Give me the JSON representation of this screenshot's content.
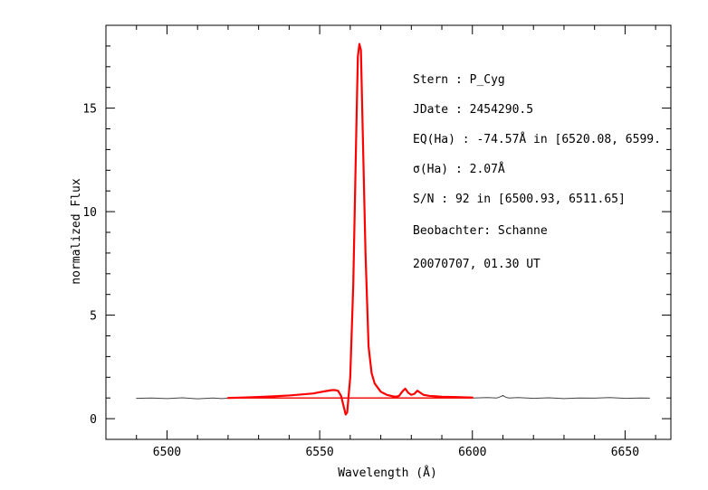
{
  "chart_data": {
    "type": "line",
    "xlabel": "Wavelength (Å)",
    "ylabel": "normalized Flux",
    "xlim": [
      6480,
      6665
    ],
    "ylim": [
      -1,
      19
    ],
    "x_ticks": [
      6500,
      6550,
      6600,
      6650
    ],
    "y_ticks": [
      0,
      5,
      10,
      15
    ],
    "grid": false,
    "colors": {
      "raw": "#444444",
      "fit": "#ff0000",
      "frame": "#000000"
    },
    "series": [
      {
        "style": "thin-gray",
        "x": [
          6490,
          6495,
          6500,
          6505,
          6510,
          6515,
          6518,
          6521,
          6600,
          6605,
          6608,
          6609,
          6610,
          6611,
          6612,
          6615,
          6620,
          6625,
          6630,
          6635,
          6640,
          6645,
          6650,
          6655,
          6658
        ],
        "y": [
          0.98,
          1.0,
          0.97,
          1.01,
          0.96,
          1.0,
          0.97,
          1.0,
          1.0,
          1.02,
          1.0,
          1.05,
          1.12,
          1.03,
          1.0,
          1.02,
          0.98,
          1.01,
          0.97,
          1.0,
          0.99,
          1.02,
          0.98,
          1.0,
          0.99
        ]
      },
      {
        "style": "thick-red",
        "x": [
          6520,
          6525,
          6530,
          6535,
          6540,
          6545,
          6548,
          6550,
          6552,
          6554,
          6555,
          6556,
          6557,
          6558,
          6558.5,
          6559,
          6560,
          6561,
          6562,
          6562.5,
          6563,
          6563.5,
          6564,
          6565,
          6566,
          6567,
          6568,
          6570,
          6572,
          6574,
          6575,
          6576,
          6577,
          6578,
          6579,
          6580,
          6581,
          6582,
          6583,
          6584,
          6586,
          6588,
          6590,
          6595,
          6600
        ],
        "y": [
          1.0,
          1.02,
          1.05,
          1.08,
          1.12,
          1.18,
          1.22,
          1.28,
          1.33,
          1.38,
          1.38,
          1.35,
          1.1,
          0.5,
          0.2,
          0.3,
          2.0,
          6.5,
          14.0,
          17.5,
          18.1,
          17.8,
          14.5,
          8.0,
          3.5,
          2.2,
          1.7,
          1.3,
          1.15,
          1.08,
          1.06,
          1.1,
          1.3,
          1.45,
          1.25,
          1.15,
          1.2,
          1.35,
          1.25,
          1.15,
          1.1,
          1.08,
          1.06,
          1.04,
          1.02
        ]
      },
      {
        "style": "red-continuum",
        "x": [
          6520,
          6600
        ],
        "y": [
          1.0,
          1.0
        ]
      }
    ],
    "annotations": [
      "Stern   : P_Cyg",
      "JDate   : 2454290.5",
      "EQ(Ha) : -74.57Å in [6520.08, 6599.",
      "σ(Ha)   : 2.07Å",
      "S/N     : 92 in [6500.93, 6511.65]",
      "Beobachter: Schanne",
      "20070707, 01.30 UT"
    ]
  }
}
